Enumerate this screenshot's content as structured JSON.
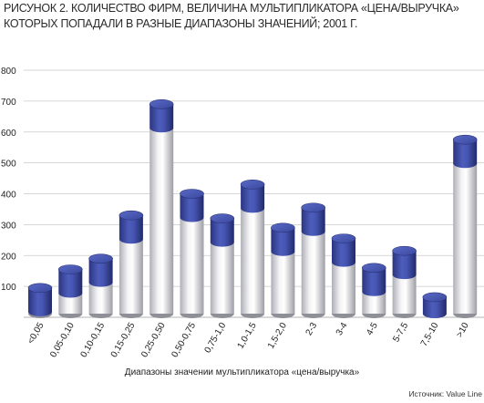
{
  "chart_data": {
    "type": "bar",
    "title": "РИСУНОК 2. КОЛИЧЕСТВО ФИРМ, ВЕЛИЧИНА МУЛЬТИПЛИКАТОРА «ЦЕНА/ВЫРУЧКА» КОТОРЫХ ПОПАДАЛИ В РАЗНЫЕ ДИАПАЗОНЫ ЗНАЧЕНИЙ; 2001 Г.",
    "xlabel": "Диапазоны значении мультипликатора «цена/выручка»",
    "ylabel": "",
    "ylim": [
      0,
      800
    ],
    "yticks": [
      "100",
      "200",
      "300",
      "400",
      "500",
      "600",
      "700",
      "800"
    ],
    "categories": [
      "<0,05",
      "0,05-0,10",
      "0,10-0,15",
      "0,15-0,25",
      "0,25-0,50",
      "0,50-0,75",
      "0,75-1,0",
      "1,0-1,5",
      "1,5-2,0",
      "2-3",
      "3-4",
      "4-5",
      "5-7,5",
      "7,5-10",
      ">10"
    ],
    "values": [
      95,
      155,
      190,
      330,
      690,
      400,
      320,
      430,
      290,
      355,
      255,
      160,
      215,
      65,
      575
    ],
    "grid": true,
    "colors": {
      "cap": "#3f4fa8",
      "cap_dark": "#232c6e",
      "body": "#e8e8ec",
      "body_shade": "#a9a9b1"
    }
  },
  "source": "Источник: Value Line"
}
